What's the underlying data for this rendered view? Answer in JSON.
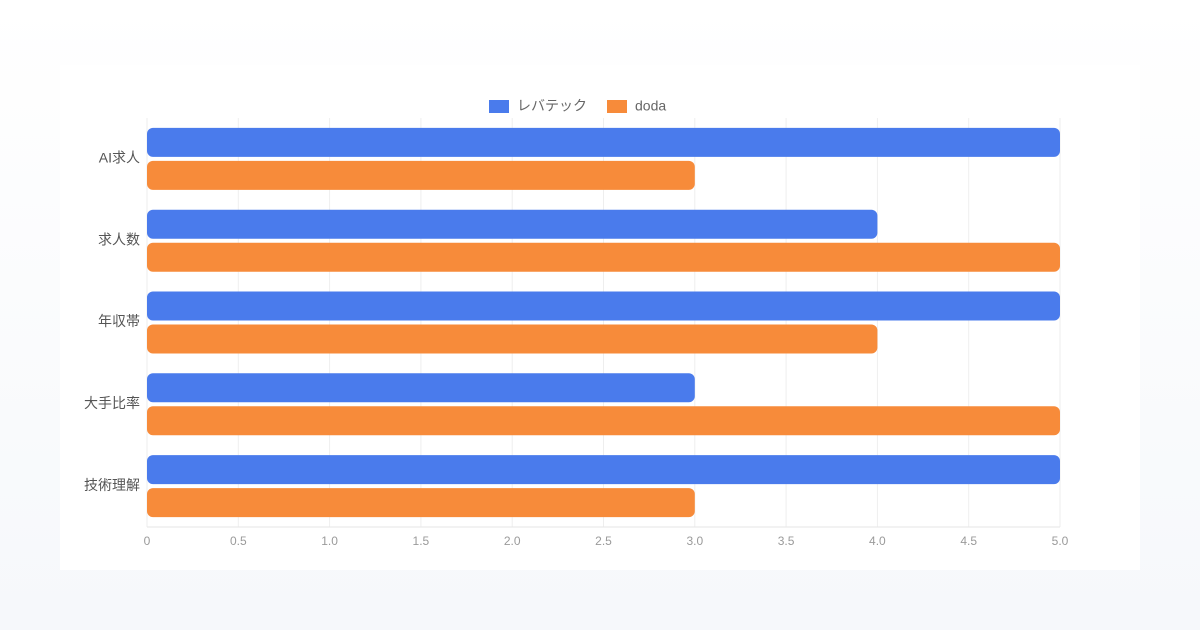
{
  "chart_data": {
    "type": "bar",
    "orientation": "horizontal",
    "categories": [
      "AI求人",
      "求人数",
      "年収帯",
      "大手比率",
      "技術理解"
    ],
    "series": [
      {
        "name": "レバテック",
        "color": "#4a7bec",
        "values": [
          5,
          4,
          5,
          3,
          5
        ]
      },
      {
        "name": "doda",
        "color": "#f78b3a",
        "values": [
          3,
          5,
          4,
          5,
          3
        ]
      }
    ],
    "xlim": [
      0,
      5
    ],
    "xticks": [
      0,
      0.5,
      {
        "value": 1,
        "label": "1.0"
      },
      1.5,
      {
        "value": 2,
        "label": "2.0"
      },
      2.5,
      {
        "value": 3,
        "label": "3.0"
      },
      3.5,
      {
        "value": 4,
        "label": "4.0"
      },
      4.5,
      {
        "value": 5,
        "label": "5.0"
      }
    ],
    "grid": true,
    "legend": "top"
  }
}
